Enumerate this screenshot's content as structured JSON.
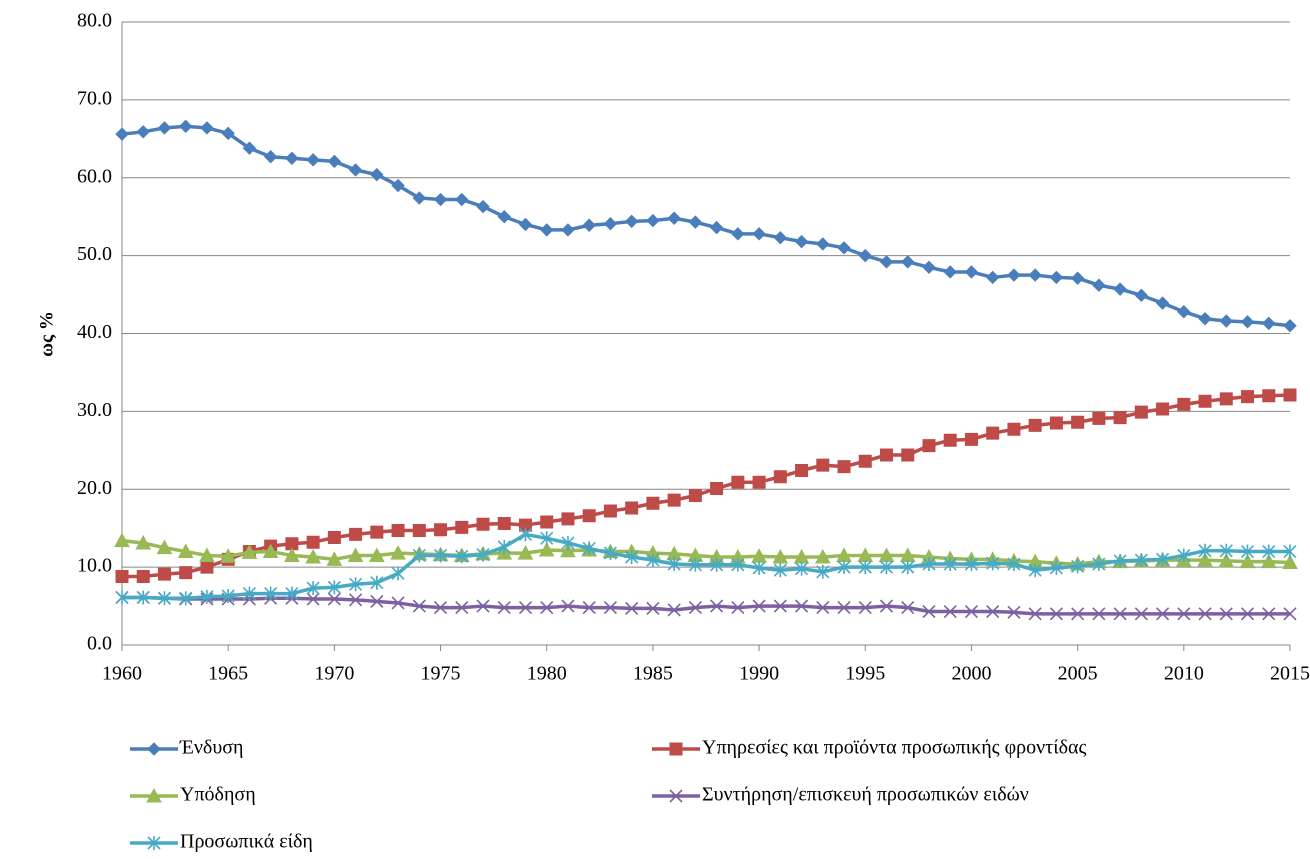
{
  "chart_data": {
    "type": "line",
    "y_label": "ως %",
    "x": [
      1960,
      1961,
      1962,
      1963,
      1964,
      1965,
      1966,
      1967,
      1968,
      1969,
      1970,
      1971,
      1972,
      1973,
      1974,
      1975,
      1976,
      1977,
      1978,
      1979,
      1980,
      1981,
      1982,
      1983,
      1984,
      1985,
      1986,
      1987,
      1988,
      1989,
      1990,
      1991,
      1992,
      1993,
      1994,
      1995,
      1996,
      1997,
      1998,
      1999,
      2000,
      2001,
      2002,
      2003,
      2004,
      2005,
      2006,
      2007,
      2008,
      2009,
      2010,
      2011,
      2012,
      2013,
      2014,
      2015
    ],
    "xlim": [
      1960,
      2015
    ],
    "xticks": [
      1960,
      1965,
      1970,
      1975,
      1980,
      1985,
      1990,
      1995,
      2000,
      2005,
      2010,
      2015
    ],
    "ylim": [
      0,
      80
    ],
    "yticks": [
      {
        "value": 0,
        "label": "0.0"
      },
      {
        "value": 10,
        "label": "10.0"
      },
      {
        "value": 20,
        "label": "20.0"
      },
      {
        "value": 30,
        "label": "30.0"
      },
      {
        "value": 40,
        "label": "40.0"
      },
      {
        "value": 50,
        "label": "50.0"
      },
      {
        "value": 60,
        "label": "60.0"
      },
      {
        "value": 70,
        "label": "70.0"
      },
      {
        "value": 80,
        "label": "80.0"
      }
    ],
    "grid": true,
    "legend": "bottom",
    "series": [
      {
        "name": "Ένδυση",
        "color": "#4a7ebb",
        "marker": "diamond",
        "values": [
          65.6,
          65.9,
          66.4,
          66.6,
          66.4,
          65.7,
          63.8,
          62.7,
          62.5,
          62.3,
          62.1,
          61.0,
          60.4,
          59.0,
          57.4,
          57.2,
          57.2,
          56.3,
          55.0,
          54.0,
          53.3,
          53.3,
          53.9,
          54.1,
          54.4,
          54.5,
          54.8,
          54.3,
          53.6,
          52.8,
          52.8,
          52.3,
          51.8,
          51.5,
          51.0,
          50.0,
          49.2,
          49.2,
          48.5,
          47.9,
          47.9,
          47.2,
          47.5,
          47.5,
          47.2,
          47.1,
          46.2,
          45.7,
          44.9,
          43.9,
          42.8,
          41.9,
          41.6,
          41.5,
          41.3,
          41.0
        ]
      },
      {
        "name": "Υπηρεσίες και προϊόντα προσωπικής φροντίδας",
        "color": "#be4b48",
        "marker": "square",
        "values": [
          8.8,
          8.8,
          9.1,
          9.3,
          10.0,
          11.0,
          12.0,
          12.7,
          13.0,
          13.2,
          13.8,
          14.2,
          14.5,
          14.7,
          14.7,
          14.8,
          15.1,
          15.5,
          15.6,
          15.4,
          15.8,
          16.2,
          16.6,
          17.2,
          17.6,
          18.2,
          18.6,
          19.2,
          20.1,
          20.9,
          20.9,
          21.6,
          22.4,
          23.1,
          22.9,
          23.6,
          24.4,
          24.4,
          25.6,
          26.3,
          26.4,
          27.2,
          27.7,
          28.2,
          28.5,
          28.6,
          29.1,
          29.2,
          29.9,
          30.3,
          30.9,
          31.3,
          31.6,
          31.9,
          32.0,
          32.1
        ]
      },
      {
        "name": "Υπόδηση",
        "color": "#98b954",
        "marker": "triangle",
        "values": [
          13.4,
          13.1,
          12.5,
          12.0,
          11.5,
          11.4,
          11.9,
          12.0,
          11.5,
          11.3,
          11.0,
          11.5,
          11.5,
          11.8,
          11.7,
          11.6,
          11.5,
          11.7,
          11.8,
          11.8,
          12.2,
          12.1,
          12.2,
          12.0,
          12.0,
          11.8,
          11.7,
          11.5,
          11.3,
          11.3,
          11.4,
          11.3,
          11.3,
          11.3,
          11.5,
          11.5,
          11.5,
          11.5,
          11.3,
          11.1,
          11.0,
          11.0,
          10.8,
          10.7,
          10.5,
          10.4,
          10.7,
          10.7,
          10.8,
          10.9,
          10.9,
          10.9,
          10.8,
          10.7,
          10.7,
          10.6
        ]
      },
      {
        "name": "Συντήρηση/επισκευή προσωπικών ειδών",
        "color": "#7d60a0",
        "marker": "x",
        "values": [
          6.1,
          6.1,
          6.0,
          5.9,
          5.9,
          5.9,
          5.9,
          6.0,
          6.0,
          5.9,
          5.9,
          5.8,
          5.6,
          5.4,
          5.0,
          4.8,
          4.8,
          5.0,
          4.8,
          4.8,
          4.8,
          5.0,
          4.8,
          4.8,
          4.7,
          4.7,
          4.5,
          4.8,
          5.0,
          4.8,
          5.0,
          5.0,
          5.0,
          4.8,
          4.8,
          4.8,
          5.0,
          4.8,
          4.3,
          4.3,
          4.3,
          4.3,
          4.2,
          4.0,
          4.0,
          4.0,
          4.0,
          4.0,
          4.0,
          4.0,
          4.0,
          4.0,
          4.0,
          4.0,
          4.0,
          4.0
        ]
      },
      {
        "name": "Προσωπικά είδη",
        "color": "#46aac5",
        "marker": "asterisk",
        "values": [
          6.1,
          6.1,
          6.0,
          6.0,
          6.2,
          6.3,
          6.6,
          6.6,
          6.6,
          7.3,
          7.4,
          7.8,
          8.0,
          9.2,
          11.5,
          11.5,
          11.4,
          11.6,
          12.6,
          14.2,
          13.7,
          13.1,
          12.4,
          11.8,
          11.3,
          10.9,
          10.4,
          10.3,
          10.3,
          10.3,
          9.9,
          9.6,
          9.8,
          9.4,
          10.0,
          10.0,
          10.0,
          10.0,
          10.4,
          10.4,
          10.4,
          10.5,
          10.4,
          9.6,
          9.9,
          10.1,
          10.4,
          10.8,
          10.9,
          11.0,
          11.5,
          12.1,
          12.1,
          12.0,
          12.0,
          12.0
        ]
      }
    ]
  }
}
